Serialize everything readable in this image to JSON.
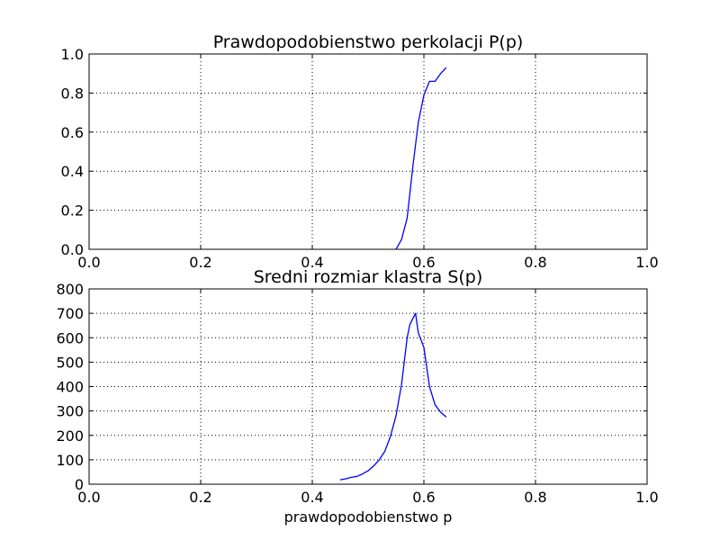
{
  "chart_data": [
    {
      "type": "line",
      "title": "Prawdopodobienstwo perkolacji P(p)",
      "xlabel": "",
      "ylabel": "",
      "xlim": [
        0.0,
        1.0
      ],
      "ylim": [
        0.0,
        1.0
      ],
      "grid": true,
      "xticks": [
        "0.0",
        "0.2",
        "0.4",
        "0.6",
        "0.8",
        "1.0"
      ],
      "yticks": [
        "0.0",
        "0.2",
        "0.4",
        "0.6",
        "0.8",
        "1.0"
      ],
      "series": [
        {
          "color": "#0000ff",
          "x": [
            0.55,
            0.56,
            0.57,
            0.58,
            0.59,
            0.6,
            0.61,
            0.62,
            0.63,
            0.64
          ],
          "y": [
            0.0,
            0.05,
            0.16,
            0.42,
            0.65,
            0.79,
            0.86,
            0.86,
            0.9,
            0.93
          ]
        }
      ]
    },
    {
      "type": "line",
      "title": "Sredni rozmiar klastra S(p)",
      "xlabel": "prawdopodobienstwo p",
      "ylabel": "",
      "xlim": [
        0.0,
        1.0
      ],
      "ylim": [
        0,
        800
      ],
      "grid": true,
      "xticks": [
        "0.0",
        "0.2",
        "0.4",
        "0.6",
        "0.8",
        "1.0"
      ],
      "yticks": [
        "0",
        "100",
        "200",
        "300",
        "400",
        "500",
        "600",
        "700",
        "800"
      ],
      "series": [
        {
          "color": "#0000ff",
          "x": [
            0.45,
            0.46,
            0.47,
            0.48,
            0.49,
            0.5,
            0.51,
            0.52,
            0.53,
            0.54,
            0.55,
            0.56,
            0.57,
            0.575,
            0.585,
            0.59,
            0.6,
            0.61,
            0.62,
            0.63,
            0.64
          ],
          "y": [
            18,
            22,
            28,
            32,
            42,
            55,
            75,
            100,
            135,
            195,
            280,
            410,
            600,
            655,
            700,
            620,
            560,
            400,
            325,
            295,
            275
          ]
        }
      ]
    }
  ]
}
